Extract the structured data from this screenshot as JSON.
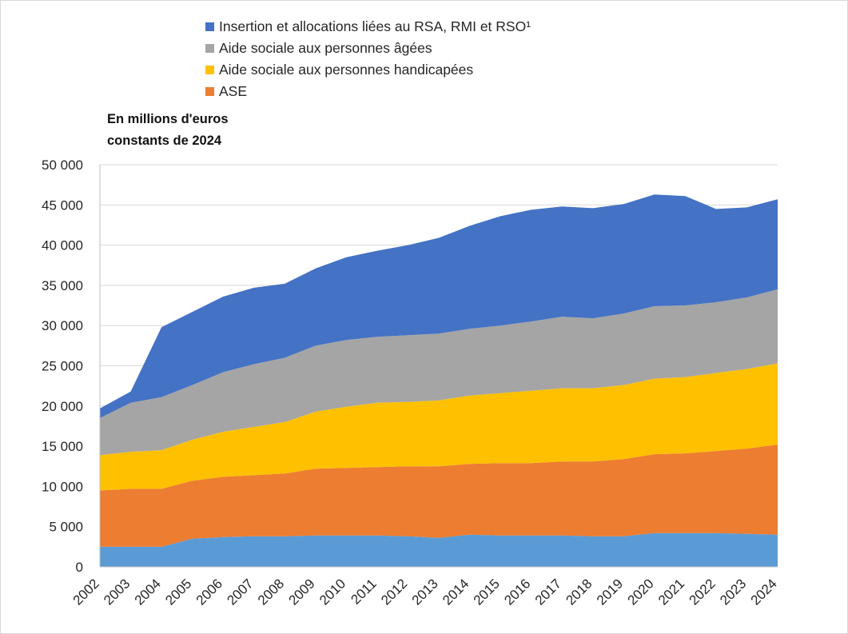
{
  "chart_data": {
    "type": "area",
    "stacked": true,
    "unit_label_line1": "En millions d'euros",
    "unit_label_line2": "constants de 2024",
    "categories": [
      "2002",
      "2003",
      "2004",
      "2005",
      "2006",
      "2007",
      "2008",
      "2009",
      "2010",
      "2011",
      "2012",
      "2013",
      "2014",
      "2015",
      "2016",
      "2017",
      "2018",
      "2019",
      "2020",
      "2021",
      "2022",
      "2023",
      "2024"
    ],
    "ylim": [
      0,
      50000
    ],
    "yticks": [
      0,
      5000,
      10000,
      15000,
      20000,
      25000,
      30000,
      35000,
      40000,
      45000,
      50000
    ],
    "ytick_labels": [
      "0",
      "5 000",
      "10 000",
      "15 000",
      "20 000",
      "25 000",
      "30 000",
      "35 000",
      "40 000",
      "45 000",
      "50 000"
    ],
    "series": [
      {
        "name": "",
        "legend": false,
        "color": "#5b9bd5",
        "values": [
          2500,
          2500,
          2500,
          3500,
          3700,
          3800,
          3800,
          3900,
          3900,
          3900,
          3800,
          3600,
          4000,
          3900,
          3900,
          3900,
          3800,
          3800,
          4200,
          4200,
          4200,
          4100,
          4000
        ]
      },
      {
        "name": "ASE",
        "legend": true,
        "color": "#ed7d31",
        "values": [
          7000,
          7200,
          7200,
          7200,
          7500,
          7600,
          7800,
          8300,
          8400,
          8500,
          8700,
          8900,
          8800,
          9000,
          9000,
          9200,
          9300,
          9600,
          9800,
          9900,
          10200,
          10600,
          11200
        ]
      },
      {
        "name": "Aide sociale aux personnes handicapées",
        "legend": true,
        "color": "#ffc000",
        "values": [
          4400,
          4600,
          4800,
          5100,
          5600,
          6000,
          6400,
          7100,
          7600,
          8000,
          8000,
          8200,
          8500,
          8700,
          9000,
          9100,
          9100,
          9200,
          9400,
          9500,
          9700,
          9900,
          10100
        ]
      },
      {
        "name": "Aide sociale aux personnes âgées",
        "legend": true,
        "color": "#a5a5a5",
        "values": [
          4600,
          6100,
          6600,
          6800,
          7400,
          7800,
          8000,
          8200,
          8300,
          8200,
          8300,
          8300,
          8300,
          8400,
          8600,
          8900,
          8700,
          8900,
          9000,
          8900,
          8800,
          8900,
          9200
        ]
      },
      {
        "name": "Insertion et allocations liées au RSA, RMI et RSO¹",
        "legend": true,
        "color": "#4472c4",
        "values": [
          1200,
          1400,
          8700,
          9100,
          9400,
          9500,
          9200,
          9600,
          10300,
          10700,
          11200,
          11900,
          12800,
          13600,
          13900,
          13700,
          13700,
          13600,
          13900,
          13600,
          11600,
          11200,
          11200
        ]
      }
    ]
  }
}
